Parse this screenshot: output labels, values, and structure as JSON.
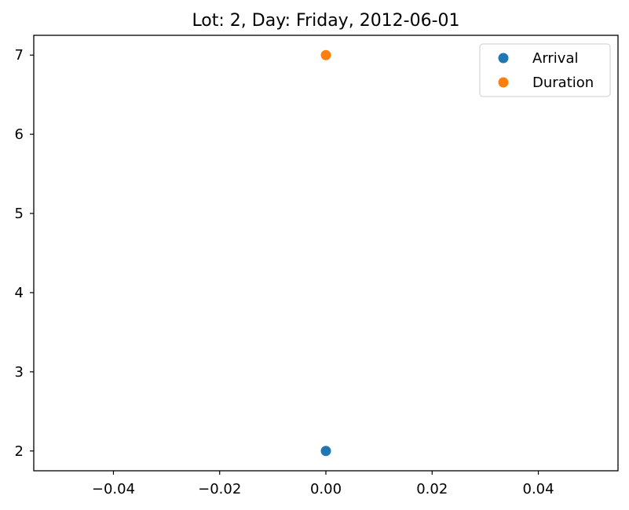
{
  "chart_data": {
    "type": "scatter",
    "title": "Lot: 2, Day: Friday, 2012-06-01",
    "xlabel": "",
    "ylabel": "",
    "xlim": [
      -0.055,
      0.055
    ],
    "ylim": [
      1.75,
      7.25
    ],
    "xticks": [
      -0.04,
      -0.02,
      0.0,
      0.02,
      0.04
    ],
    "xtick_labels": [
      "−0.04",
      "−0.02",
      "0.00",
      "0.02",
      "0.04"
    ],
    "yticks": [
      2,
      3,
      4,
      5,
      6,
      7
    ],
    "ytick_labels": [
      "2",
      "3",
      "4",
      "5",
      "6",
      "7"
    ],
    "grid": false,
    "legend_position": "top-right",
    "series": [
      {
        "name": "Arrival",
        "color": "#1f77b4",
        "points": [
          {
            "x": 0,
            "y": 2
          }
        ]
      },
      {
        "name": "Duration",
        "color": "#ff7f0e",
        "points": [
          {
            "x": 0,
            "y": 7
          }
        ]
      }
    ]
  }
}
